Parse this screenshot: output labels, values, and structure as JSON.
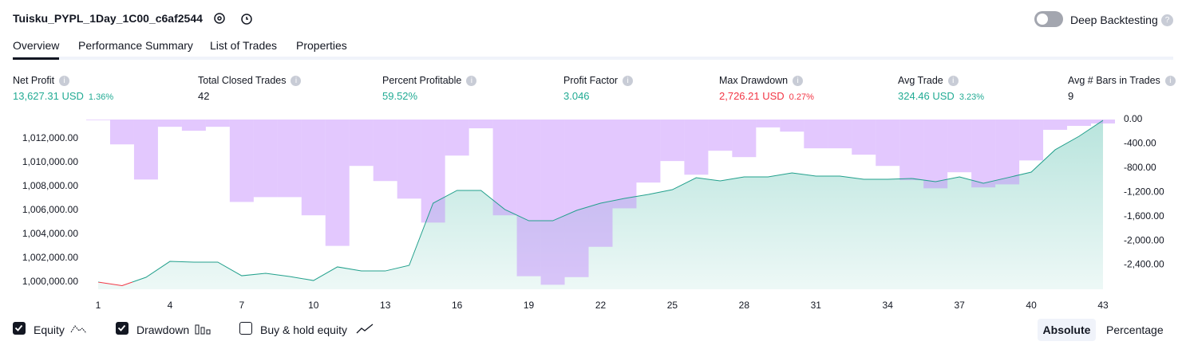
{
  "header": {
    "title": "Tuisku_PYPL_1Day_1C00_c6af2544",
    "deep_backtesting": "Deep Backtesting"
  },
  "tabs": [
    "Overview",
    "Performance Summary",
    "List of Trades",
    "Properties"
  ],
  "metrics": [
    {
      "label": "Net Profit",
      "value": "13,627.31 USD",
      "percent": "1.36%"
    },
    {
      "label": "Total Closed Trades",
      "value": "42"
    },
    {
      "label": "Percent Profitable",
      "value": "59.52%"
    },
    {
      "label": "Profit Factor",
      "value": "3.046"
    },
    {
      "label": "Max Drawdown",
      "value": "2,726.21 USD",
      "percent": "0.27%"
    },
    {
      "label": "Avg Trade",
      "value": "324.46 USD",
      "percent": "3.23%"
    },
    {
      "label": "Avg # Bars in Trades",
      "value": "9"
    }
  ],
  "chart_data": {
    "type": "combo",
    "x": [
      1,
      2,
      3,
      4,
      5,
      6,
      7,
      8,
      9,
      10,
      11,
      12,
      13,
      14,
      15,
      16,
      17,
      18,
      19,
      20,
      21,
      22,
      23,
      24,
      25,
      26,
      27,
      28,
      29,
      30,
      31,
      32,
      33,
      34,
      35,
      36,
      37,
      38,
      39,
      40,
      41,
      42,
      43
    ],
    "xlim": [
      0.5,
      43.5
    ],
    "xticks": [
      1,
      4,
      7,
      10,
      13,
      16,
      19,
      22,
      25,
      28,
      31,
      34,
      37,
      40,
      43
    ],
    "ylim": [
      999400,
      1013600
    ],
    "yticks": [
      {
        "value": 1000000,
        "label": "1,000,000.00"
      },
      {
        "value": 1002000,
        "label": "1,002,000.00"
      },
      {
        "value": 1004000,
        "label": "1,004,000.00"
      },
      {
        "value": 1006000,
        "label": "1,006,000.00"
      },
      {
        "value": 1008000,
        "label": "1,008,000.00"
      },
      {
        "value": 1010000,
        "label": "1,010,000.00"
      },
      {
        "value": 1012000,
        "label": "1,012,000.00"
      }
    ],
    "y2lim": [
      -2800,
      0
    ],
    "y2ticks": [
      {
        "value": 0,
        "label": "0.00"
      },
      {
        "value": -400,
        "label": "-400.00"
      },
      {
        "value": -800,
        "label": "-800.00"
      },
      {
        "value": -1200,
        "label": "-1,200.00"
      },
      {
        "value": -1600,
        "label": "-1,600.00"
      },
      {
        "value": -2000,
        "label": "-2,000.00"
      },
      {
        "value": -2400,
        "label": "-2,400.00"
      }
    ],
    "series": [
      {
        "name": "Equity",
        "type": "line",
        "visible": true,
        "color": "#22a08c",
        "below_color": "#f23645",
        "values": [
          1000000,
          999700,
          1000400,
          1001730,
          1001670,
          1001670,
          1000530,
          1000730,
          1000470,
          1000130,
          1001270,
          1000930,
          1000930,
          1001400,
          1006600,
          1007670,
          1007670,
          1006070,
          1005130,
          1005130,
          1006000,
          1006600,
          1007000,
          1007330,
          1007730,
          1008730,
          1008470,
          1008800,
          1008800,
          1009130,
          1008870,
          1008870,
          1008600,
          1008600,
          1008670,
          1008400,
          1008800,
          1008270,
          1008730,
          1009200,
          1011070,
          1012200,
          1013530
        ]
      },
      {
        "name": "Drawdown",
        "type": "bar",
        "axis": "y2",
        "visible": true,
        "color": "#c084fc",
        "values": [
          -10,
          -410,
          -990,
          -120,
          -185,
          -120,
          -1360,
          -1280,
          -1280,
          -1580,
          -2085,
          -765,
          -1015,
          -1305,
          -1700,
          -595,
          -145,
          -1580,
          -2585,
          -2726,
          -2600,
          -2100,
          -1465,
          -1040,
          -685,
          -910,
          -515,
          -620,
          -130,
          -200,
          -475,
          -475,
          -580,
          -765,
          -1000,
          -1135,
          -870,
          -1120,
          -1070,
          -675,
          -170,
          -105,
          -65
        ]
      }
    ]
  },
  "buy_hold": {
    "label": "Buy & hold equity",
    "visible": false
  },
  "mode_buttons": [
    "Absolute",
    "Percentage"
  ]
}
